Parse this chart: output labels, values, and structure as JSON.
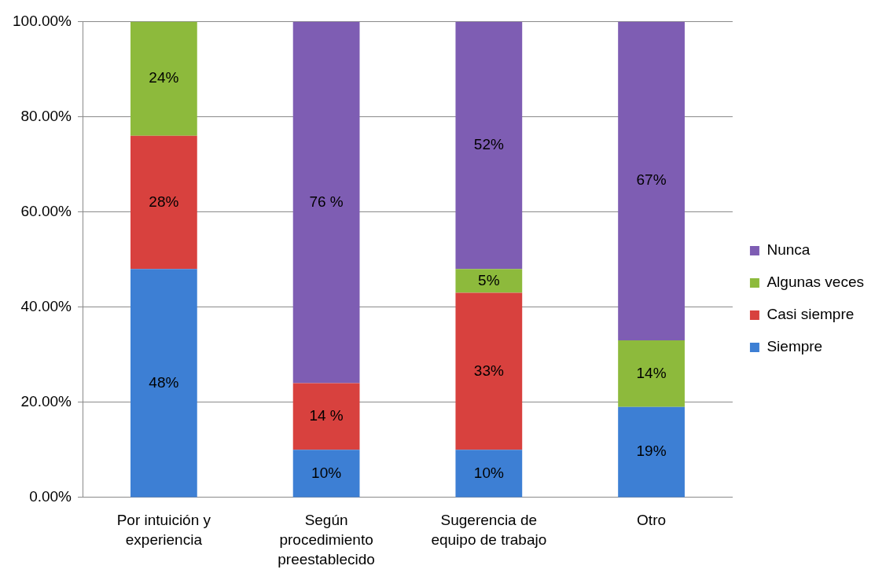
{
  "chart_data": {
    "type": "bar",
    "stacked": true,
    "categories": [
      "Por intuición y experiencia",
      "Según procedimiento preestablecido",
      "Sugerencia de equipo de trabajo",
      "Otro"
    ],
    "series": [
      {
        "name": "Siempre",
        "color": "#3d7fd4",
        "values": [
          48,
          10,
          10,
          19
        ],
        "value_labels": [
          "48%",
          "10%",
          "10%",
          "19%"
        ]
      },
      {
        "name": "Casi siempre",
        "color": "#d8413e",
        "values": [
          28,
          14,
          33,
          null
        ],
        "value_labels": [
          "28%",
          "14 %",
          "33%",
          null
        ]
      },
      {
        "name": "Algunas veces",
        "color": "#8dba3c",
        "values": [
          24,
          null,
          5,
          14
        ],
        "value_labels": [
          "24%",
          null,
          "5%",
          "14%"
        ]
      },
      {
        "name": "Nunca",
        "color": "#7e5db3",
        "values": [
          null,
          76,
          52,
          67
        ],
        "value_labels": [
          null,
          "76 %",
          "52%",
          "67%"
        ]
      }
    ],
    "ylim": [
      0,
      100
    ],
    "yticks": [
      {
        "value": 0,
        "label": "0.00%"
      },
      {
        "value": 20,
        "label": "20.00%"
      },
      {
        "value": 40,
        "label": "40.00%"
      },
      {
        "value": 60,
        "label": "60.00%"
      },
      {
        "value": 80,
        "label": "80.00%"
      },
      {
        "value": 100,
        "label": "100.00%"
      }
    ],
    "grid": "y",
    "legend": "right"
  }
}
